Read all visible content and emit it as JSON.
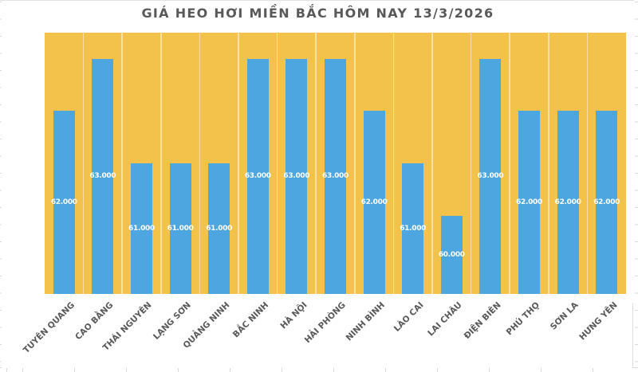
{
  "colors": {
    "plot_background": "#F2C24B",
    "bar_fill": "#4DA6DF",
    "title_text": "#595959",
    "axis_label_text": "#595959",
    "value_label_text": "#FFFFFF",
    "category_separator": "rgba(255,255,255,0.5)",
    "spreadsheet_gridline": "#D9D9D9"
  },
  "chart_data": {
    "type": "bar",
    "title": "GIÁ HEO HƠI MIỀN BẮC HÔM NAY 13/3/2026",
    "xlabel": "",
    "ylabel": "",
    "categories": [
      "TUYÊN QUANG",
      "CAO BẰNG",
      "THÁI NGUYÊN",
      "LẠNG SƠN",
      "QUẢNG NINH",
      "BẮC NINH",
      "HÀ NỘI",
      "HẢI PHÒNG",
      "NINH BÌNH",
      "LÀO CAI",
      "LAI CHÂU",
      "ĐIỆN BIÊN",
      "PHÚ THỌ",
      "SƠN LA",
      "HƯNG YÊN"
    ],
    "values": [
      62000,
      63000,
      61000,
      61000,
      61000,
      63000,
      63000,
      63000,
      62000,
      61000,
      60000,
      63000,
      62000,
      62000,
      62000
    ],
    "value_labels": [
      "62.000",
      "63.000",
      "61.000",
      "61.000",
      "61.000",
      "63.000",
      "63.000",
      "63.000",
      "62.000",
      "61.000",
      "60.000",
      "63.000",
      "62.000",
      "62.000",
      "62.000"
    ],
    "ylim": [
      58500,
      63500
    ],
    "yticks_visible": false,
    "legend": "none",
    "grid": "light vertical separators between category columns on gold plot background",
    "value_label_position": "center of bar",
    "x_label_rotation_deg": 45
  }
}
